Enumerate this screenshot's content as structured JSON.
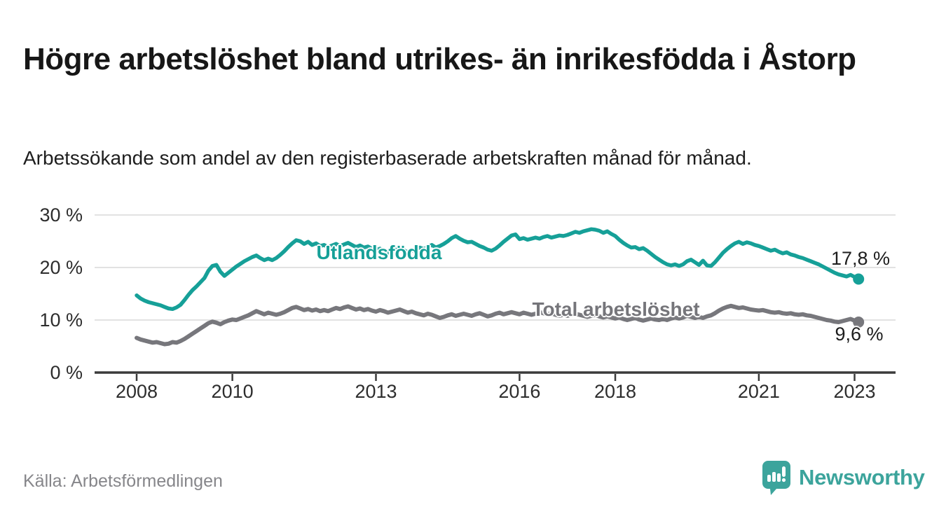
{
  "header": {
    "title": "Högre arbetslöshet bland utrikes- än inrikesfödda i Åstorp",
    "subtitle": "Arbetssökande som andel av den registerbaserade arbetskraften månad för månad."
  },
  "footer": {
    "source": "Källa: Arbetsförmedlingen",
    "brand": "Newsworthy"
  },
  "colors": {
    "teal_line": "#16a098",
    "gray_line": "#77777c",
    "grid": "#d9d9d9",
    "axis": "#3b3b3b",
    "text_dark": "#171717",
    "muted_text": "#86868a",
    "logo_teal": "#3ca49c"
  },
  "chart_data": {
    "type": "line",
    "title": "Högre arbetslöshet bland utrikes- än inrikesfödda i Åstorp",
    "subtitle": "Arbetssökande som andel av den registerbaserade arbetskraften månad för månad.",
    "x_start_year": 2008,
    "points_per_year": 12,
    "x_tick_years": [
      2008,
      2010,
      2013,
      2016,
      2018,
      2021,
      2023
    ],
    "y_ticks": [
      {
        "value": 0,
        "label": "0 %"
      },
      {
        "value": 10,
        "label": "10 %"
      },
      {
        "value": 20,
        "label": "20 %"
      },
      {
        "value": 30,
        "label": "30 %"
      }
    ],
    "ylim": [
      0,
      31
    ],
    "grid": "horizontal",
    "legend_position": "inline-labels",
    "series": [
      {
        "name": "Utlandsfödda",
        "color": "#16a098",
        "end_label": "17,8 %",
        "end_value": 17.8,
        "values": [
          14.7,
          14.1,
          13.7,
          13.4,
          13.2,
          13.0,
          12.8,
          12.5,
          12.2,
          12.1,
          12.4,
          12.9,
          13.8,
          14.8,
          15.7,
          16.4,
          17.2,
          18.0,
          19.4,
          20.3,
          20.5,
          19.2,
          18.4,
          19.0,
          19.6,
          20.2,
          20.7,
          21.2,
          21.6,
          22.0,
          22.3,
          21.8,
          21.4,
          21.7,
          21.4,
          21.8,
          22.4,
          23.1,
          23.9,
          24.6,
          25.2,
          25.0,
          24.5,
          24.9,
          24.3,
          24.6,
          24.1,
          24.3,
          23.9,
          24.2,
          24.5,
          24.1,
          24.4,
          24.7,
          24.3,
          23.9,
          24.2,
          23.8,
          24.0,
          23.6,
          23.3,
          23.6,
          23.1,
          22.8,
          23.0,
          23.4,
          23.7,
          23.3,
          22.9,
          23.2,
          23.5,
          23.8,
          23.5,
          23.9,
          24.3,
          23.8,
          24.1,
          24.5,
          25.0,
          25.6,
          26.0,
          25.5,
          25.1,
          24.8,
          24.9,
          24.5,
          24.1,
          23.8,
          23.4,
          23.2,
          23.6,
          24.2,
          24.9,
          25.5,
          26.1,
          26.3,
          25.4,
          25.6,
          25.3,
          25.5,
          25.7,
          25.5,
          25.8,
          26.0,
          25.7,
          25.9,
          26.1,
          26.0,
          26.2,
          26.5,
          26.8,
          26.6,
          26.9,
          27.1,
          27.3,
          27.2,
          27.0,
          26.6,
          26.9,
          26.4,
          26.0,
          25.3,
          24.7,
          24.2,
          23.8,
          23.9,
          23.5,
          23.7,
          23.2,
          22.6,
          22.0,
          21.5,
          21.0,
          20.6,
          20.4,
          20.6,
          20.3,
          20.6,
          21.2,
          21.5,
          21.0,
          20.5,
          21.3,
          20.4,
          20.3,
          21.0,
          21.9,
          22.8,
          23.5,
          24.1,
          24.6,
          24.9,
          24.5,
          24.8,
          24.6,
          24.3,
          24.1,
          23.8,
          23.5,
          23.2,
          23.4,
          23.0,
          22.7,
          22.9,
          22.5,
          22.3,
          22.0,
          21.8,
          21.5,
          21.2,
          20.9,
          20.6,
          20.2,
          19.8,
          19.4,
          19.0,
          18.7,
          18.5,
          18.3,
          18.6,
          18.2,
          17.8
        ]
      },
      {
        "name": "Total arbetslöshet",
        "color": "#77777c",
        "end_label": "9,6 %",
        "end_value": 9.6,
        "values": [
          6.6,
          6.3,
          6.1,
          5.9,
          5.7,
          5.8,
          5.6,
          5.4,
          5.5,
          5.8,
          5.7,
          6.0,
          6.4,
          6.9,
          7.4,
          7.9,
          8.4,
          8.9,
          9.4,
          9.7,
          9.5,
          9.2,
          9.6,
          9.9,
          10.1,
          10.0,
          10.3,
          10.6,
          10.9,
          11.3,
          11.7,
          11.4,
          11.1,
          11.4,
          11.2,
          11.0,
          11.2,
          11.5,
          11.9,
          12.3,
          12.5,
          12.2,
          11.9,
          12.1,
          11.8,
          12.0,
          11.7,
          11.9,
          11.7,
          12.0,
          12.3,
          12.1,
          12.4,
          12.6,
          12.3,
          12.0,
          12.2,
          11.9,
          12.1,
          11.8,
          11.6,
          11.9,
          11.7,
          11.4,
          11.6,
          11.8,
          12.0,
          11.7,
          11.4,
          11.6,
          11.3,
          11.1,
          10.9,
          11.2,
          11.0,
          10.7,
          10.4,
          10.6,
          10.9,
          11.1,
          10.8,
          11.0,
          11.2,
          11.0,
          10.8,
          11.1,
          11.3,
          11.0,
          10.7,
          10.9,
          11.2,
          11.4,
          11.1,
          11.3,
          11.5,
          11.3,
          11.1,
          11.4,
          11.2,
          11.0,
          11.2,
          11.5,
          11.3,
          11.1,
          11.3,
          11.0,
          10.8,
          11.0,
          10.8,
          11.0,
          11.2,
          11.0,
          10.8,
          10.6,
          10.8,
          11.0,
          10.7,
          10.5,
          10.7,
          10.5,
          10.3,
          10.5,
          10.2,
          10.0,
          10.2,
          10.4,
          10.1,
          9.9,
          10.1,
          10.3,
          10.1,
          10.0,
          10.2,
          10.0,
          10.3,
          10.5,
          10.3,
          10.5,
          10.8,
          10.6,
          10.4,
          10.6,
          10.4,
          10.7,
          10.9,
          11.3,
          11.8,
          12.2,
          12.5,
          12.7,
          12.5,
          12.3,
          12.4,
          12.2,
          12.0,
          11.9,
          11.8,
          11.9,
          11.7,
          11.5,
          11.4,
          11.5,
          11.3,
          11.2,
          11.3,
          11.1,
          11.0,
          11.1,
          10.9,
          10.8,
          10.6,
          10.4,
          10.2,
          10.0,
          9.9,
          9.7,
          9.6,
          9.8,
          10.0,
          10.2,
          9.9,
          9.6
        ]
      }
    ]
  }
}
